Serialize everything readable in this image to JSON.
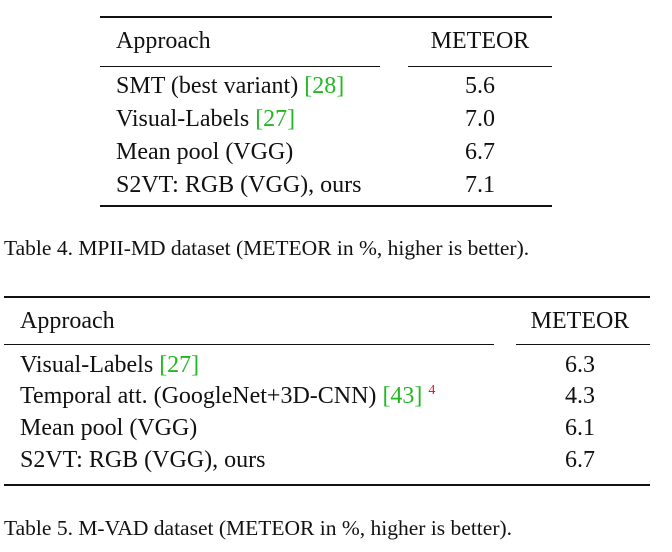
{
  "table4": {
    "header": {
      "approach": "Approach",
      "metric": "METEOR"
    },
    "rows": [
      {
        "approach": "SMT (best variant) ",
        "cite": "[28]",
        "value": "5.6"
      },
      {
        "approach": "Visual-Labels ",
        "cite": "[27]",
        "value": "7.0"
      },
      {
        "approach": "Mean pool (VGG)",
        "cite": "",
        "value": "6.7"
      },
      {
        "approach": "S2VT: RGB (VGG), ours",
        "cite": "",
        "value": "7.1"
      }
    ],
    "caption": "Table 4.  MPII-MD dataset (METEOR in %, higher is better)."
  },
  "table5": {
    "header": {
      "approach": "Approach",
      "metric": "METEOR"
    },
    "rows": [
      {
        "approach": "Visual-Labels ",
        "cite": "[27]",
        "footnote": "",
        "value": "6.3"
      },
      {
        "approach": "Temporal att. (GoogleNet+3D-CNN) ",
        "cite": "[43]",
        "footnote": "4",
        "value": "4.3"
      },
      {
        "approach": "Mean pool (VGG)",
        "cite": "",
        "footnote": "",
        "value": "6.1"
      },
      {
        "approach": "S2VT: RGB (VGG), ours",
        "cite": "",
        "footnote": "",
        "value": "6.7"
      }
    ],
    "caption": "Table 5.  M-VAD dataset (METEOR in %, higher is better)."
  },
  "colors": {
    "citation": "#22b822",
    "footnote": "#dd2020",
    "text": "#111111"
  }
}
